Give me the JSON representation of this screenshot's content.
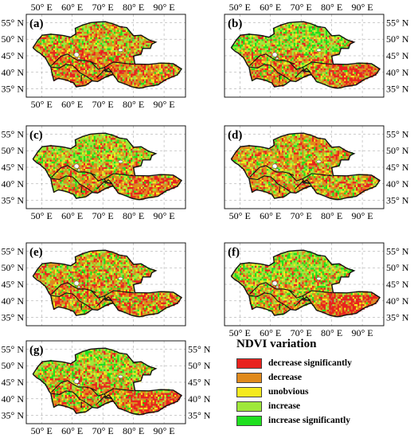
{
  "figure": {
    "lon_labels": [
      "50° E",
      "60° E",
      "70° E",
      "80° E",
      "90° E"
    ],
    "lat_labels": [
      "55° N",
      "50° N",
      "45° N",
      "40° N",
      "35° N"
    ],
    "panels": [
      {
        "id": "a",
        "label": "(a)"
      },
      {
        "id": "b",
        "label": "(b)"
      },
      {
        "id": "c",
        "label": "(c)"
      },
      {
        "id": "d",
        "label": "(d)"
      },
      {
        "id": "e",
        "label": "(e)"
      },
      {
        "id": "f",
        "label": "(f)"
      },
      {
        "id": "g",
        "label": "(g)"
      }
    ]
  },
  "legend": {
    "title": "NDVI variation",
    "items": [
      {
        "label": "decrease significantly",
        "color": "#e8231e"
      },
      {
        "label": "decrease",
        "color": "#e08a1c"
      },
      {
        "label": "unobvious",
        "color": "#f5ea1f"
      },
      {
        "label": "increase",
        "color": "#9ee83a"
      },
      {
        "label": "increase significantly",
        "color": "#1fe01f"
      }
    ]
  },
  "colors": {
    "outline": "#111111",
    "grid": "#9a9a9a",
    "lake": "#ffffff"
  }
}
